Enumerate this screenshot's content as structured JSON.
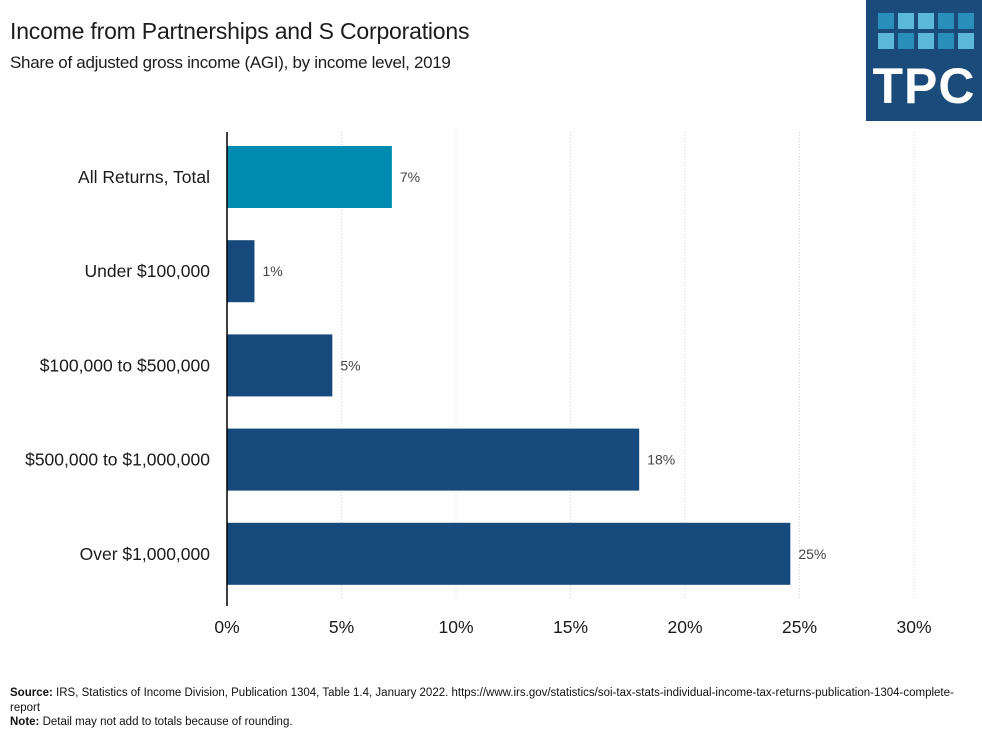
{
  "header": {
    "title": "Income from Partnerships and S Corporations",
    "subtitle": "Share of adjusted gross income (AGI), by income level, 2019"
  },
  "logo": {
    "text": "TPC",
    "background": "#1b4b7a",
    "tile_colors": [
      "#2a8fb8",
      "#5bb8d6",
      "#5bb8d6",
      "#2a8fb8",
      "#2a8fb8",
      "#5bb8d6",
      "#2a8fb8",
      "#5bb8d6",
      "#2a8fb8",
      "#5bb8d6"
    ]
  },
  "chart_data": {
    "type": "bar",
    "orientation": "horizontal",
    "title": "Income from Partnerships and S Corporations",
    "subtitle": "Share of adjusted gross income (AGI), by income level, 2019",
    "categories": [
      "All Returns, Total",
      "Under $100,000",
      "$100,000 to $500,000",
      "$500,000 to $1,000,000",
      "Over $1,000,000"
    ],
    "values": [
      7.2,
      1.2,
      4.6,
      18.0,
      24.6
    ],
    "data_labels": [
      "7%",
      "1%",
      "5%",
      "18%",
      "25%"
    ],
    "colors": [
      "#008bb0",
      "#174a7c",
      "#174a7c",
      "#174a7c",
      "#174a7c"
    ],
    "xlabel": "",
    "ylabel": "",
    "xlim": [
      0,
      30
    ],
    "x_ticks": [
      0,
      5,
      10,
      15,
      20,
      25,
      30
    ],
    "x_tick_labels": [
      "0%",
      "5%",
      "10%",
      "15%",
      "20%",
      "25%",
      "30%"
    ],
    "grid": "vertical dotted",
    "legend": "none"
  },
  "footer": {
    "source_label": "Source:",
    "source_text": " IRS, Statistics of Income Division,  Publication 1304, Table 1.4, January 2022. https://www.irs.gov/statistics/soi-tax-stats-individual-income-tax-returns-publication-1304-complete-report",
    "note_label": "Note:",
    "note_text": " Detail may not add to totals because of rounding."
  }
}
